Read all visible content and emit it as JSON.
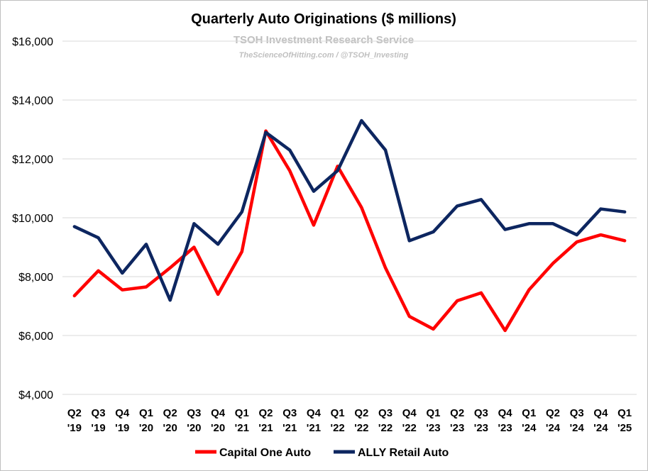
{
  "chart_data": {
    "type": "line",
    "title": "Quarterly Auto Originations ($ millions)",
    "subtitle": "TSOH Investment Research Service",
    "credit": "TheScienceOfHitting.com / @TSOH_Investing",
    "categories": [
      [
        "Q2",
        "'19"
      ],
      [
        "Q3",
        "'19"
      ],
      [
        "Q4",
        "'19"
      ],
      [
        "Q1",
        "'20"
      ],
      [
        "Q2",
        "'20"
      ],
      [
        "Q3",
        "'20"
      ],
      [
        "Q4",
        "'20"
      ],
      [
        "Q1",
        "'21"
      ],
      [
        "Q2",
        "'21"
      ],
      [
        "Q3",
        "'21"
      ],
      [
        "Q4",
        "'21"
      ],
      [
        "Q1",
        "'22"
      ],
      [
        "Q2",
        "'22"
      ],
      [
        "Q3",
        "'22"
      ],
      [
        "Q4",
        "'22"
      ],
      [
        "Q1",
        "'23"
      ],
      [
        "Q2",
        "'23"
      ],
      [
        "Q3",
        "'23"
      ],
      [
        "Q4",
        "'23"
      ],
      [
        "Q1",
        "'24"
      ],
      [
        "Q2",
        "'24"
      ],
      [
        "Q3",
        "'24"
      ],
      [
        "Q4",
        "'24"
      ],
      [
        "Q1",
        "'25"
      ]
    ],
    "series": [
      {
        "name": "Capital One Auto",
        "color": "#ff0000",
        "values": [
          7350,
          8200,
          7550,
          7650,
          8300,
          9000,
          7400,
          8850,
          12950,
          11600,
          9750,
          11750,
          10350,
          8300,
          6650,
          6220,
          7180,
          7450,
          6170,
          7550,
          8450,
          9180,
          9420,
          9220
        ]
      },
      {
        "name": "ALLY Retail Auto",
        "color": "#0d2660",
        "values": [
          9700,
          9320,
          8120,
          9100,
          7200,
          9800,
          9100,
          10200,
          12900,
          12300,
          10900,
          11600,
          13300,
          12300,
          9220,
          9520,
          10400,
          10620,
          9600,
          9800,
          9800,
          9420,
          10300,
          10200
        ]
      }
    ],
    "ylim": [
      4000,
      16000
    ],
    "yticks": [
      {
        "value": 4000,
        "label": "$4,000"
      },
      {
        "value": 6000,
        "label": "$6,000"
      },
      {
        "value": 8000,
        "label": "$8,000"
      },
      {
        "value": 10000,
        "label": "$10,000"
      },
      {
        "value": 12000,
        "label": "$12,000"
      },
      {
        "value": 14000,
        "label": "$14,000"
      },
      {
        "value": 16000,
        "label": "$16,000"
      }
    ],
    "grid": true,
    "legend_position": "bottom"
  }
}
